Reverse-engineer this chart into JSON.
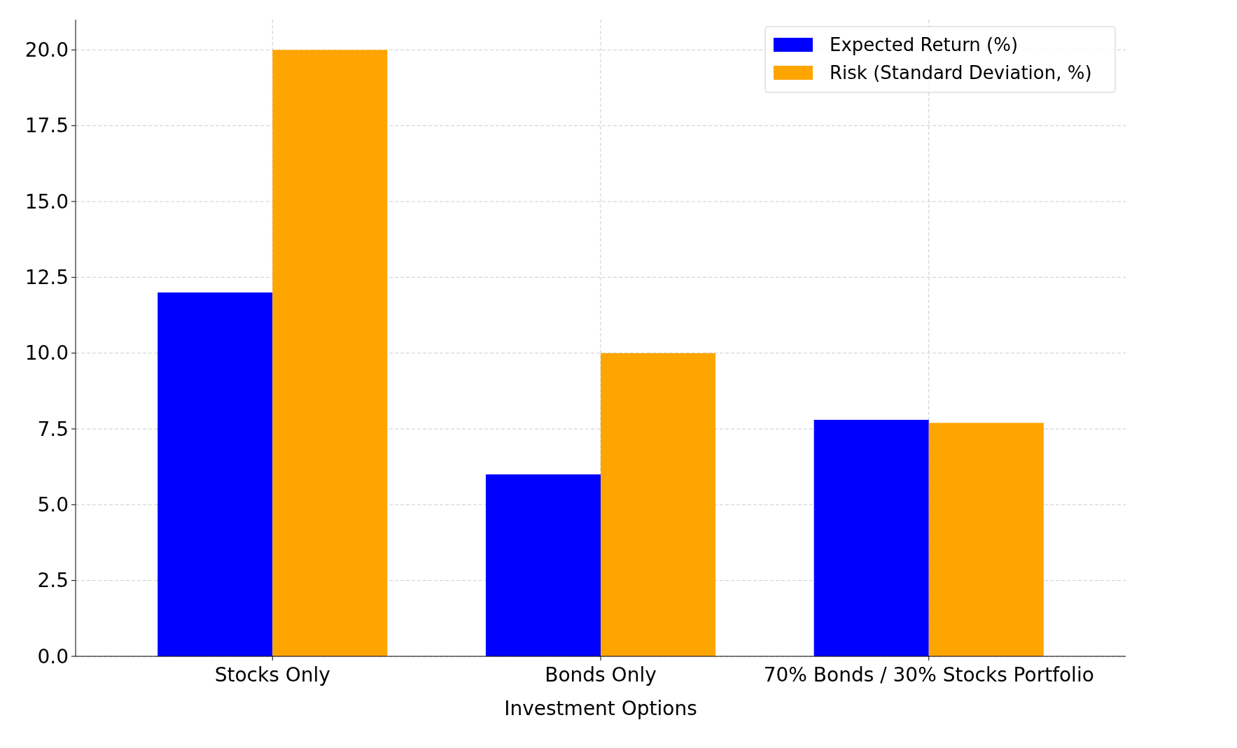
{
  "chart_data": {
    "type": "bar",
    "xlabel": "Investment Options",
    "categories": [
      "Stocks Only",
      "Bonds Only",
      "70% Bonds / 30% Stocks Portfolio"
    ],
    "series": [
      {
        "name": "Expected Return (%)",
        "color": "#0000ff",
        "values": [
          12,
          6,
          7.8
        ]
      },
      {
        "name": "Risk (Standard Deviation, %)",
        "color": "#ffa500",
        "values": [
          20,
          10,
          7.7
        ]
      }
    ],
    "ylim": [
      0,
      21
    ],
    "yticks": [
      {
        "value": 0,
        "label": "0.0"
      },
      {
        "value": 2.5,
        "label": "2.5"
      },
      {
        "value": 5,
        "label": "5.0"
      },
      {
        "value": 7.5,
        "label": "7.5"
      },
      {
        "value": 10,
        "label": "10.0"
      },
      {
        "value": 12.5,
        "label": "12.5"
      },
      {
        "value": 15,
        "label": "15.0"
      },
      {
        "value": 17.5,
        "label": "17.5"
      },
      {
        "value": 20,
        "label": "20.0"
      }
    ],
    "grid": true,
    "legend": "top right"
  }
}
